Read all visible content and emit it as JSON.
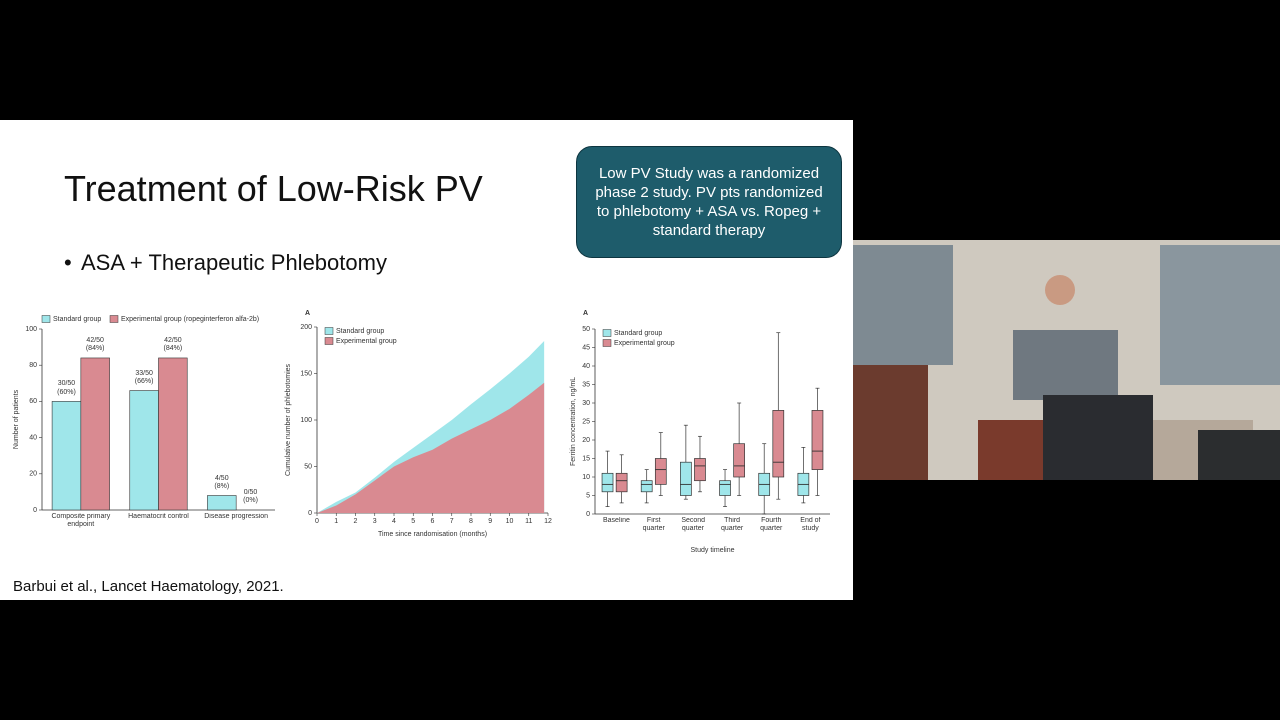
{
  "slide": {
    "title": "Treatment of Low-Risk PV",
    "bullet": "ASA + Therapeutic Phlebotomy",
    "callout": "Low PV Study was a randomized phase 2 study. PV pts randomized to phlebotomy + ASA vs. Ropeg + standard therapy",
    "citation": "Barbui et al., Lancet Haematology, 2021."
  },
  "chart_data": [
    {
      "type": "bar",
      "ylabel": "Number of patients",
      "legend": "top",
      "categories": [
        "Composite primary endpoint",
        "Haematocrit control",
        "Disease progression"
      ],
      "ylim": [
        0,
        100
      ],
      "yticks": [
        0,
        20,
        40,
        60,
        80,
        100
      ],
      "series": [
        {
          "name": "Standard group",
          "color": "#9fe6ea",
          "values": [
            60,
            66,
            8
          ],
          "value_labels": [
            "30/50 (60%)",
            "33/50 (66%)",
            "4/50 (8%)"
          ]
        },
        {
          "name": "Experimental group (ropeginterferon alfa-2b)",
          "color": "#d98a91",
          "values": [
            84,
            84,
            0
          ],
          "value_labels": [
            "42/50 (84%)",
            "42/50 (84%)",
            "0/50 (0%)"
          ]
        }
      ]
    },
    {
      "type": "area",
      "panel_label": "A",
      "ylabel": "Cumulative number of phlebotomies",
      "xlabel": "Time since randomisation (months)",
      "legend": "upper left",
      "x": [
        0,
        1,
        2,
        3,
        4,
        5,
        6,
        7,
        8,
        9,
        10,
        11,
        11.8
      ],
      "xlim": [
        0,
        12
      ],
      "xticks": [
        0,
        1,
        2,
        3,
        4,
        5,
        6,
        7,
        8,
        9,
        10,
        11,
        12
      ],
      "ylim": [
        0,
        200
      ],
      "yticks": [
        0,
        50,
        100,
        150,
        200
      ],
      "series": [
        {
          "name": "Standard group",
          "color": "#9fe6ea",
          "values": [
            0,
            12,
            22,
            38,
            55,
            70,
            85,
            100,
            117,
            133,
            150,
            168,
            185
          ]
        },
        {
          "name": "Experimental group",
          "color": "#d98a91",
          "values": [
            0,
            8,
            20,
            35,
            50,
            60,
            68,
            80,
            90,
            100,
            112,
            127,
            140
          ]
        }
      ]
    },
    {
      "type": "box",
      "panel_label": "A",
      "ylabel": "Ferritin concentration, ng/mL",
      "xlabel": "Study timeline",
      "legend": "upper left",
      "categories": [
        "Baseline",
        "First quarter",
        "Second quarter",
        "Third quarter",
        "Fourth quarter",
        "End of study"
      ],
      "ylim": [
        0,
        50
      ],
      "yticks": [
        0,
        5,
        10,
        15,
        20,
        25,
        30,
        35,
        40,
        45,
        50
      ],
      "series": [
        {
          "name": "Standard group",
          "color": "#9fe6ea",
          "values": [
            [
              2,
              6,
              8,
              11,
              17
            ],
            [
              3,
              6,
              8,
              9,
              12
            ],
            [
              4,
              5,
              8,
              14,
              24
            ],
            [
              2,
              5,
              8,
              9,
              12
            ],
            [
              0,
              5,
              8,
              11,
              19
            ],
            [
              3,
              5,
              8,
              11,
              18
            ]
          ]
        },
        {
          "name": "Experimental group",
          "color": "#d98a91",
          "values": [
            [
              3,
              6,
              9,
              11,
              16
            ],
            [
              5,
              8,
              12,
              15,
              22
            ],
            [
              6,
              9,
              13,
              15,
              21
            ],
            [
              5,
              10,
              13,
              19,
              30
            ],
            [
              4,
              10,
              14,
              28,
              49
            ],
            [
              5,
              12,
              17,
              28,
              34
            ]
          ]
        }
      ]
    }
  ]
}
